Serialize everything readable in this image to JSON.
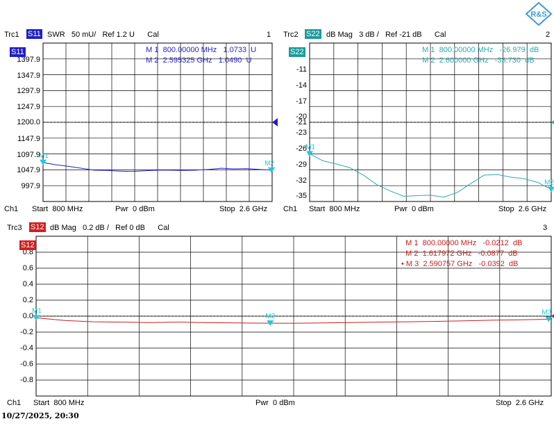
{
  "timestamp": "10/27/2025, 20:30",
  "logo_text": "R&S",
  "chart_data": [
    {
      "type": "line",
      "trace": "Trc1",
      "param": "S11",
      "header_rest": "SWR   50 mU/   Ref 1.2 U      Cal",
      "format": "SWR",
      "scale": "50 mU/",
      "ref": "1.2 U",
      "cal": "Cal",
      "window_number": "1",
      "badge_label": "S11",
      "color": "#1f1fc8",
      "badge_color": "#1f1fc8",
      "yticks": [
        "1397.9",
        "1347.9",
        "1297.9",
        "1247.9",
        "1200.0",
        "1147.9",
        "1097.9",
        "1047.9",
        "997.9"
      ],
      "ylim": [
        0.95,
        1.45
      ],
      "ref_value": 1.2,
      "x_range_ghz": [
        0.8,
        2.6
      ],
      "x": [
        0.8,
        0.9,
        1.0,
        1.1,
        1.2,
        1.3,
        1.4,
        1.5,
        1.6,
        1.7,
        1.8,
        1.9,
        2.0,
        2.1,
        2.2,
        2.3,
        2.4,
        2.5,
        2.6
      ],
      "y": [
        1.073,
        1.066,
        1.061,
        1.055,
        1.049,
        1.048,
        1.046,
        1.045,
        1.047,
        1.049,
        1.049,
        1.048,
        1.049,
        1.051,
        1.055,
        1.053,
        1.054,
        1.051,
        1.049
      ],
      "markers": [
        {
          "label": "M 1",
          "freq": "800.00000 MHz",
          "value": "1.0733  U",
          "x": 0.8,
          "y": 1.0733
        },
        {
          "label": "M 2",
          "freq": "2.595325 GHz",
          "value": "1.0490  U",
          "x": 2.595,
          "y": 1.049
        }
      ],
      "footer": {
        "channel": "Ch1",
        "start": "Start  800 MHz",
        "pwr": "Pwr  0 dBm",
        "stop": "Stop  2.6 GHz"
      }
    },
    {
      "type": "line",
      "trace": "Trc2",
      "param": "S22",
      "header_rest": "dB Mag   3 dB /   Ref -21 dB      Cal",
      "format": "dB Mag",
      "scale": "3 dB /",
      "ref": "-21 dB",
      "cal": "Cal",
      "window_number": "2",
      "badge_label": "S22",
      "color": "#2aaab4",
      "badge_color": "#1e9a9a",
      "yticks": [
        "-11",
        "-14",
        "-17",
        "-20",
        "-21",
        "-23",
        "-26",
        "-29",
        "-32",
        "-35"
      ],
      "ytick_values": [
        -11,
        -14,
        -17,
        -20,
        -21,
        -23,
        -26,
        -29,
        -32,
        -35
      ],
      "ylim": [
        -36,
        -6
      ],
      "ref_value": -21,
      "x_range_ghz": [
        0.8,
        2.6
      ],
      "x": [
        0.8,
        0.9,
        1.0,
        1.1,
        1.2,
        1.3,
        1.4,
        1.5,
        1.6,
        1.7,
        1.8,
        1.9,
        2.0,
        2.1,
        2.2,
        2.3,
        2.4,
        2.5,
        2.6
      ],
      "y": [
        -26.98,
        -28.3,
        -28.9,
        -29.6,
        -31.0,
        -32.8,
        -34.0,
        -35.0,
        -34.9,
        -34.8,
        -35.2,
        -34.3,
        -32.6,
        -31.0,
        -30.9,
        -31.4,
        -31.7,
        -32.4,
        -33.7
      ],
      "markers": [
        {
          "label": "M 1",
          "freq": "800.00000 MHz",
          "value": "-26.979  dB",
          "x": 0.8,
          "y": -26.979
        },
        {
          "label": "M 2",
          "freq": "2.600000 GHz",
          "value": "-33.730  dB",
          "x": 2.6,
          "y": -33.73
        }
      ],
      "footer": {
        "channel": "Ch1",
        "start": "Start  800 MHz",
        "pwr": "Pwr  0 dBm",
        "stop": "Stop  2.6 GHz"
      }
    },
    {
      "type": "line",
      "trace": "Trc3",
      "param": "S12",
      "header_rest": "dB Mag   0.2 dB /   Ref 0 dB      Cal",
      "format": "dB Mag",
      "scale": "0.2 dB /",
      "ref": "0 dB",
      "cal": "Cal",
      "window_number": "3",
      "badge_label": "S12",
      "color": "#c81e1e",
      "badge_color": "#d02020",
      "yticks": [
        "0.8",
        "0.6",
        "0.4",
        "0.2",
        "0.0",
        "-0.2",
        "-0.4",
        "-0.6",
        "-0.8"
      ],
      "ytick_values": [
        0.8,
        0.6,
        0.4,
        0.2,
        0.0,
        -0.2,
        -0.4,
        -0.6,
        -0.8
      ],
      "ylim": [
        -1.0,
        1.0
      ],
      "ref_value": 0,
      "x_range_ghz": [
        0.8,
        2.6
      ],
      "x": [
        0.8,
        0.9,
        1.0,
        1.1,
        1.2,
        1.3,
        1.4,
        1.5,
        1.6,
        1.7,
        1.8,
        1.9,
        2.0,
        2.1,
        2.2,
        2.3,
        2.4,
        2.5,
        2.6
      ],
      "y": [
        -0.021,
        -0.055,
        -0.07,
        -0.075,
        -0.08,
        -0.075,
        -0.082,
        -0.085,
        -0.088,
        -0.09,
        -0.085,
        -0.08,
        -0.075,
        -0.07,
        -0.065,
        -0.058,
        -0.05,
        -0.045,
        -0.039
      ],
      "markers": [
        {
          "label": "M 1",
          "freq": "800.00000 MHz",
          "value": "-0.0212  dB",
          "x": 0.8,
          "y": -0.0212
        },
        {
          "label": "M 2",
          "freq": "1.617972 GHz",
          "value": "-0.0877  dB",
          "x": 1.618,
          "y": -0.0877
        },
        {
          "label": "M 3",
          "freq": "2.590757 GHz",
          "value": "-0.0392  dB",
          "x": 2.591,
          "y": -0.0392,
          "active": true
        }
      ],
      "footer": {
        "channel": "Ch1",
        "start": "Start  800 MHz",
        "pwr": "Pwr  0 dBm",
        "stop": "Stop  2.6 GHz"
      }
    }
  ],
  "marker_color": "#22c8dc"
}
